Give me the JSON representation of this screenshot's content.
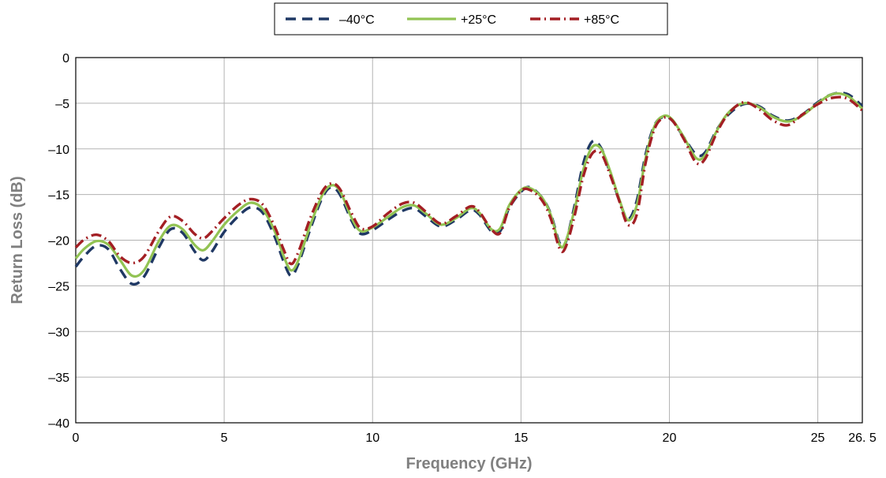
{
  "chart_data": {
    "type": "line",
    "title": "",
    "xlabel": "Frequency (GHz)",
    "ylabel": "Return Loss (dB)",
    "xlim": [
      0,
      26.5
    ],
    "ylim": [
      -40,
      0
    ],
    "grid": true,
    "legend_position": "top-center",
    "x_ticks": [
      0,
      5,
      10,
      15,
      20,
      25,
      26.5
    ],
    "x_tick_labels": [
      "0",
      "5",
      "10",
      "15",
      "20",
      "25",
      "26. 5"
    ],
    "y_ticks": [
      0,
      -5,
      -10,
      -15,
      -20,
      -25,
      -30,
      -35,
      -40
    ],
    "y_tick_labels": [
      "0",
      "–5",
      "–10",
      "–15",
      "–20",
      "–25",
      "–30",
      "–35",
      "–40"
    ],
    "series": [
      {
        "name": "–40°C",
        "color": "#1f3864",
        "style": "dashed",
        "points": [
          [
            0,
            -22.9
          ],
          [
            0.3,
            -21.7
          ],
          [
            0.7,
            -20.6
          ],
          [
            1.1,
            -21.0
          ],
          [
            1.5,
            -23.2
          ],
          [
            1.9,
            -24.8
          ],
          [
            2.3,
            -24.0
          ],
          [
            2.8,
            -20.8
          ],
          [
            3.2,
            -18.8
          ],
          [
            3.6,
            -19.2
          ],
          [
            4.0,
            -21.2
          ],
          [
            4.3,
            -22.2
          ],
          [
            4.6,
            -21.2
          ],
          [
            5.0,
            -19.1
          ],
          [
            5.5,
            -17.3
          ],
          [
            5.9,
            -16.4
          ],
          [
            6.3,
            -17.0
          ],
          [
            6.7,
            -19.6
          ],
          [
            7.0,
            -22.3
          ],
          [
            7.25,
            -23.9
          ],
          [
            7.5,
            -22.6
          ],
          [
            7.9,
            -18.8
          ],
          [
            8.3,
            -15.4
          ],
          [
            8.6,
            -14.2
          ],
          [
            8.9,
            -15.0
          ],
          [
            9.3,
            -17.9
          ],
          [
            9.6,
            -19.3
          ],
          [
            10.0,
            -18.9
          ],
          [
            10.5,
            -17.8
          ],
          [
            11.0,
            -16.8
          ],
          [
            11.4,
            -16.5
          ],
          [
            11.8,
            -17.4
          ],
          [
            12.3,
            -18.5
          ],
          [
            12.8,
            -17.8
          ],
          [
            13.3,
            -16.7
          ],
          [
            13.6,
            -17.2
          ],
          [
            14.0,
            -19.0
          ],
          [
            14.3,
            -19.0
          ],
          [
            14.6,
            -16.5
          ],
          [
            15.0,
            -14.7
          ],
          [
            15.3,
            -14.2
          ],
          [
            15.7,
            -15.3
          ],
          [
            16.0,
            -17.1
          ],
          [
            16.3,
            -20.3
          ],
          [
            16.5,
            -20.3
          ],
          [
            16.8,
            -16.3
          ],
          [
            17.1,
            -11.6
          ],
          [
            17.4,
            -9.2
          ],
          [
            17.7,
            -9.9
          ],
          [
            18.0,
            -12.6
          ],
          [
            18.3,
            -15.5
          ],
          [
            18.6,
            -17.7
          ],
          [
            18.9,
            -15.7
          ],
          [
            19.2,
            -10.6
          ],
          [
            19.5,
            -7.4
          ],
          [
            19.8,
            -6.5
          ],
          [
            20.1,
            -6.9
          ],
          [
            20.5,
            -8.8
          ],
          [
            20.9,
            -10.6
          ],
          [
            21.2,
            -10.4
          ],
          [
            21.6,
            -7.9
          ],
          [
            22.0,
            -6.2
          ],
          [
            22.5,
            -5.1
          ],
          [
            23.0,
            -5.3
          ],
          [
            23.5,
            -6.4
          ],
          [
            24.0,
            -6.9
          ],
          [
            24.5,
            -6.2
          ],
          [
            25.0,
            -4.9
          ],
          [
            25.5,
            -4.0
          ],
          [
            26.0,
            -4.0
          ],
          [
            26.5,
            -5.3
          ]
        ]
      },
      {
        "name": "+25°C",
        "color": "#92c353",
        "style": "solid",
        "points": [
          [
            0,
            -22.0
          ],
          [
            0.3,
            -20.9
          ],
          [
            0.7,
            -20.1
          ],
          [
            1.1,
            -20.5
          ],
          [
            1.5,
            -22.2
          ],
          [
            1.9,
            -23.9
          ],
          [
            2.3,
            -23.3
          ],
          [
            2.8,
            -20.1
          ],
          [
            3.2,
            -18.4
          ],
          [
            3.6,
            -18.8
          ],
          [
            4.0,
            -20.5
          ],
          [
            4.3,
            -21.1
          ],
          [
            4.6,
            -20.1
          ],
          [
            5.0,
            -18.3
          ],
          [
            5.5,
            -16.7
          ],
          [
            5.9,
            -15.9
          ],
          [
            6.3,
            -16.6
          ],
          [
            6.7,
            -19.0
          ],
          [
            7.0,
            -21.7
          ],
          [
            7.25,
            -23.3
          ],
          [
            7.5,
            -22.2
          ],
          [
            7.9,
            -18.4
          ],
          [
            8.3,
            -15.1
          ],
          [
            8.6,
            -14.0
          ],
          [
            8.9,
            -14.6
          ],
          [
            9.3,
            -17.6
          ],
          [
            9.6,
            -19.0
          ],
          [
            10.0,
            -18.6
          ],
          [
            10.5,
            -17.5
          ],
          [
            11.0,
            -16.4
          ],
          [
            11.4,
            -16.2
          ],
          [
            11.8,
            -17.1
          ],
          [
            12.3,
            -18.3
          ],
          [
            12.8,
            -17.6
          ],
          [
            13.3,
            -16.5
          ],
          [
            13.6,
            -17.0
          ],
          [
            14.0,
            -18.8
          ],
          [
            14.3,
            -18.7
          ],
          [
            14.6,
            -16.2
          ],
          [
            15.0,
            -14.5
          ],
          [
            15.3,
            -14.3
          ],
          [
            15.7,
            -15.3
          ],
          [
            16.0,
            -17.2
          ],
          [
            16.3,
            -20.5
          ],
          [
            16.5,
            -20.2
          ],
          [
            16.8,
            -16.7
          ],
          [
            17.1,
            -12.3
          ],
          [
            17.4,
            -9.8
          ],
          [
            17.7,
            -10.0
          ],
          [
            18.0,
            -12.4
          ],
          [
            18.3,
            -15.4
          ],
          [
            18.6,
            -17.8
          ],
          [
            18.9,
            -16.2
          ],
          [
            19.2,
            -11.0
          ],
          [
            19.5,
            -7.5
          ],
          [
            19.8,
            -6.4
          ],
          [
            20.1,
            -6.8
          ],
          [
            20.5,
            -8.8
          ],
          [
            20.9,
            -11.0
          ],
          [
            21.2,
            -10.7
          ],
          [
            21.6,
            -8.0
          ],
          [
            22.0,
            -6.0
          ],
          [
            22.5,
            -5.0
          ],
          [
            23.0,
            -5.4
          ],
          [
            23.5,
            -6.5
          ],
          [
            24.0,
            -7.0
          ],
          [
            24.5,
            -6.3
          ],
          [
            25.0,
            -5.0
          ],
          [
            25.5,
            -4.0
          ],
          [
            26.0,
            -4.2
          ],
          [
            26.5,
            -5.6
          ]
        ]
      },
      {
        "name": "+85°C",
        "color": "#a31f24",
        "style": "dashdot",
        "points": [
          [
            0,
            -20.8
          ],
          [
            0.3,
            -19.9
          ],
          [
            0.7,
            -19.4
          ],
          [
            1.1,
            -20.1
          ],
          [
            1.5,
            -21.8
          ],
          [
            1.9,
            -22.5
          ],
          [
            2.3,
            -21.8
          ],
          [
            2.8,
            -19.0
          ],
          [
            3.2,
            -17.4
          ],
          [
            3.6,
            -17.9
          ],
          [
            4.0,
            -19.3
          ],
          [
            4.3,
            -19.8
          ],
          [
            4.6,
            -19.0
          ],
          [
            5.0,
            -17.6
          ],
          [
            5.5,
            -16.1
          ],
          [
            5.9,
            -15.5
          ],
          [
            6.3,
            -16.1
          ],
          [
            6.7,
            -18.5
          ],
          [
            7.0,
            -21.0
          ],
          [
            7.25,
            -22.6
          ],
          [
            7.5,
            -21.3
          ],
          [
            7.9,
            -17.6
          ],
          [
            8.3,
            -14.7
          ],
          [
            8.6,
            -13.8
          ],
          [
            8.9,
            -14.4
          ],
          [
            9.3,
            -17.1
          ],
          [
            9.6,
            -18.7
          ],
          [
            10.0,
            -18.5
          ],
          [
            10.5,
            -17.1
          ],
          [
            11.0,
            -16.0
          ],
          [
            11.4,
            -15.9
          ],
          [
            11.8,
            -16.9
          ],
          [
            12.3,
            -18.2
          ],
          [
            12.8,
            -17.4
          ],
          [
            13.3,
            -16.3
          ],
          [
            13.6,
            -16.9
          ],
          [
            14.0,
            -18.8
          ],
          [
            14.3,
            -19.2
          ],
          [
            14.6,
            -16.5
          ],
          [
            15.0,
            -14.6
          ],
          [
            15.3,
            -14.5
          ],
          [
            15.7,
            -15.6
          ],
          [
            16.0,
            -17.6
          ],
          [
            16.3,
            -20.9
          ],
          [
            16.5,
            -20.8
          ],
          [
            16.8,
            -17.4
          ],
          [
            17.1,
            -13.0
          ],
          [
            17.4,
            -10.5
          ],
          [
            17.7,
            -10.5
          ],
          [
            18.0,
            -12.8
          ],
          [
            18.3,
            -15.6
          ],
          [
            18.6,
            -18.3
          ],
          [
            18.9,
            -17.2
          ],
          [
            19.2,
            -11.5
          ],
          [
            19.5,
            -7.8
          ],
          [
            19.8,
            -6.6
          ],
          [
            20.1,
            -6.9
          ],
          [
            20.5,
            -9.0
          ],
          [
            20.9,
            -11.5
          ],
          [
            21.2,
            -11.1
          ],
          [
            21.6,
            -8.2
          ],
          [
            22.0,
            -6.1
          ],
          [
            22.5,
            -4.9
          ],
          [
            23.0,
            -5.6
          ],
          [
            23.5,
            -6.9
          ],
          [
            24.0,
            -7.4
          ],
          [
            24.5,
            -6.2
          ],
          [
            25.0,
            -5.1
          ],
          [
            25.5,
            -4.4
          ],
          [
            26.0,
            -4.5
          ],
          [
            26.5,
            -5.8
          ]
        ]
      }
    ]
  }
}
